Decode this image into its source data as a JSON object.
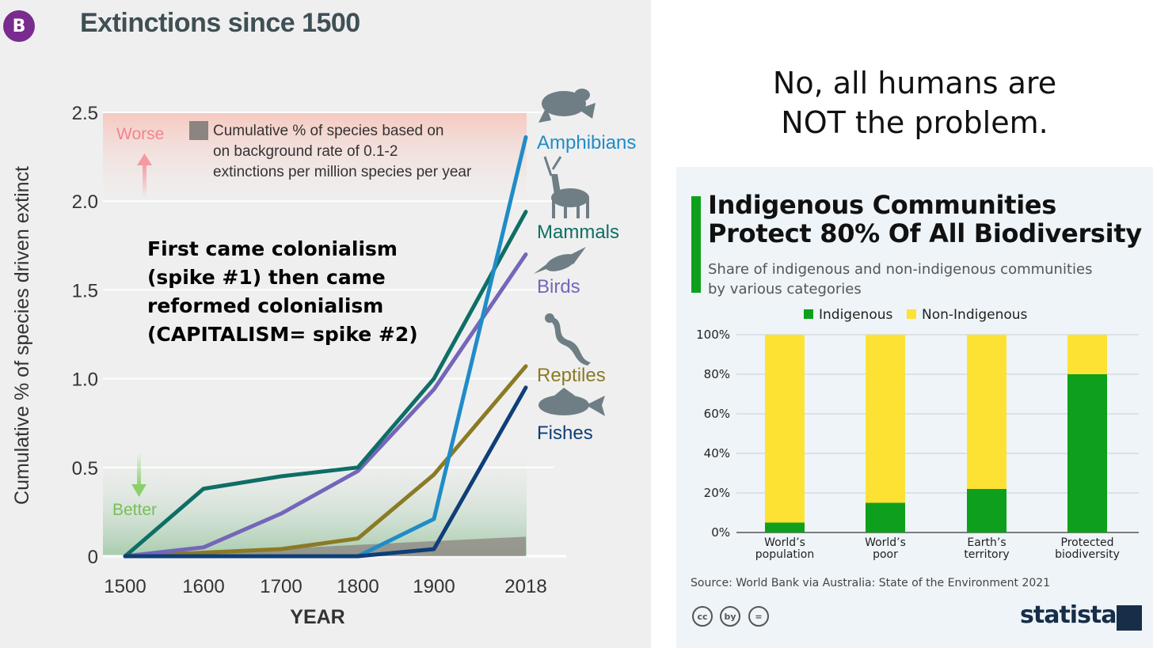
{
  "left": {
    "badge": "B",
    "title": "Extinctions since 1500",
    "annotation": [
      "First came colonialism",
      "(spike #1) then came",
      "reformed colonialism",
      "(CAPITALISM= spike #2)"
    ]
  },
  "headline": [
    "No, all humans are",
    "NOT the problem."
  ],
  "right": {
    "title": [
      "Indigenous Communities",
      "Protect 80% Of All Biodiversity"
    ],
    "subtitle": [
      "Share of indigenous and non-indigenous communities",
      "by various categories"
    ],
    "source": "Source: World Bank via Australia: State of the Environment 2021",
    "brand": "statista",
    "cc_icons": [
      "cc",
      "by",
      "="
    ]
  },
  "chart_data": [
    {
      "type": "line",
      "title": "Extinctions since 1500",
      "xlabel": "YEAR",
      "ylabel": "Cumulative % of species driven extinct",
      "x": [
        1500,
        1600,
        1700,
        1800,
        1900,
        2018
      ],
      "x_tick_labels": [
        "1500",
        "1600",
        "1700",
        "1800",
        "1900",
        "2018"
      ],
      "ylim": [
        0,
        2.5
      ],
      "y_ticks": [
        0,
        0.5,
        1.0,
        1.5,
        2.0,
        2.5
      ],
      "y_tick_labels": [
        "0",
        "0.5",
        "1.0",
        "1.5",
        "2.0",
        "2.5"
      ],
      "grid": true,
      "background_rate": {
        "label": [
          "Cumulative % of species based on",
          "on background rate of 0.1-2",
          "extinctions per million species per year"
        ],
        "values": [
          0,
          0.11
        ],
        "color": "#8c8480"
      },
      "worse_label": "Worse",
      "better_label": "Better",
      "series": [
        {
          "name": "Amphibians",
          "values": [
            0,
            0,
            0,
            0,
            0.21,
            2.36
          ],
          "color": "#1f8cc8"
        },
        {
          "name": "Mammals",
          "values": [
            0,
            0.38,
            0.45,
            0.5,
            1.0,
            1.94
          ],
          "color": "#0f6e66"
        },
        {
          "name": "Birds",
          "values": [
            0,
            0.05,
            0.24,
            0.48,
            0.94,
            1.7
          ],
          "color": "#7466b8"
        },
        {
          "name": "Reptiles",
          "values": [
            0,
            0.02,
            0.04,
            0.1,
            0.46,
            1.07
          ],
          "color": "#8a7a25"
        },
        {
          "name": "Fishes",
          "values": [
            0,
            0,
            0,
            0,
            0.04,
            0.95
          ],
          "color": "#0f3e78"
        }
      ]
    },
    {
      "type": "bar",
      "stacked": true,
      "categories": [
        [
          "World’s",
          "population"
        ],
        [
          "World’s",
          "poor"
        ],
        [
          "Earth’s",
          "territory"
        ],
        [
          "Protected",
          "biodiversity"
        ]
      ],
      "ylim": [
        0,
        100
      ],
      "y_tick_labels": [
        "0%",
        "20%",
        "40%",
        "60%",
        "80%",
        "100%"
      ],
      "legend_position": "top",
      "series": [
        {
          "name": "Indigenous",
          "values": [
            5,
            15,
            22,
            80
          ],
          "color": "#0ea01c"
        },
        {
          "name": "Non-Indigenous",
          "values": [
            95,
            85,
            78,
            20
          ],
          "color": "#fde234"
        }
      ]
    }
  ]
}
